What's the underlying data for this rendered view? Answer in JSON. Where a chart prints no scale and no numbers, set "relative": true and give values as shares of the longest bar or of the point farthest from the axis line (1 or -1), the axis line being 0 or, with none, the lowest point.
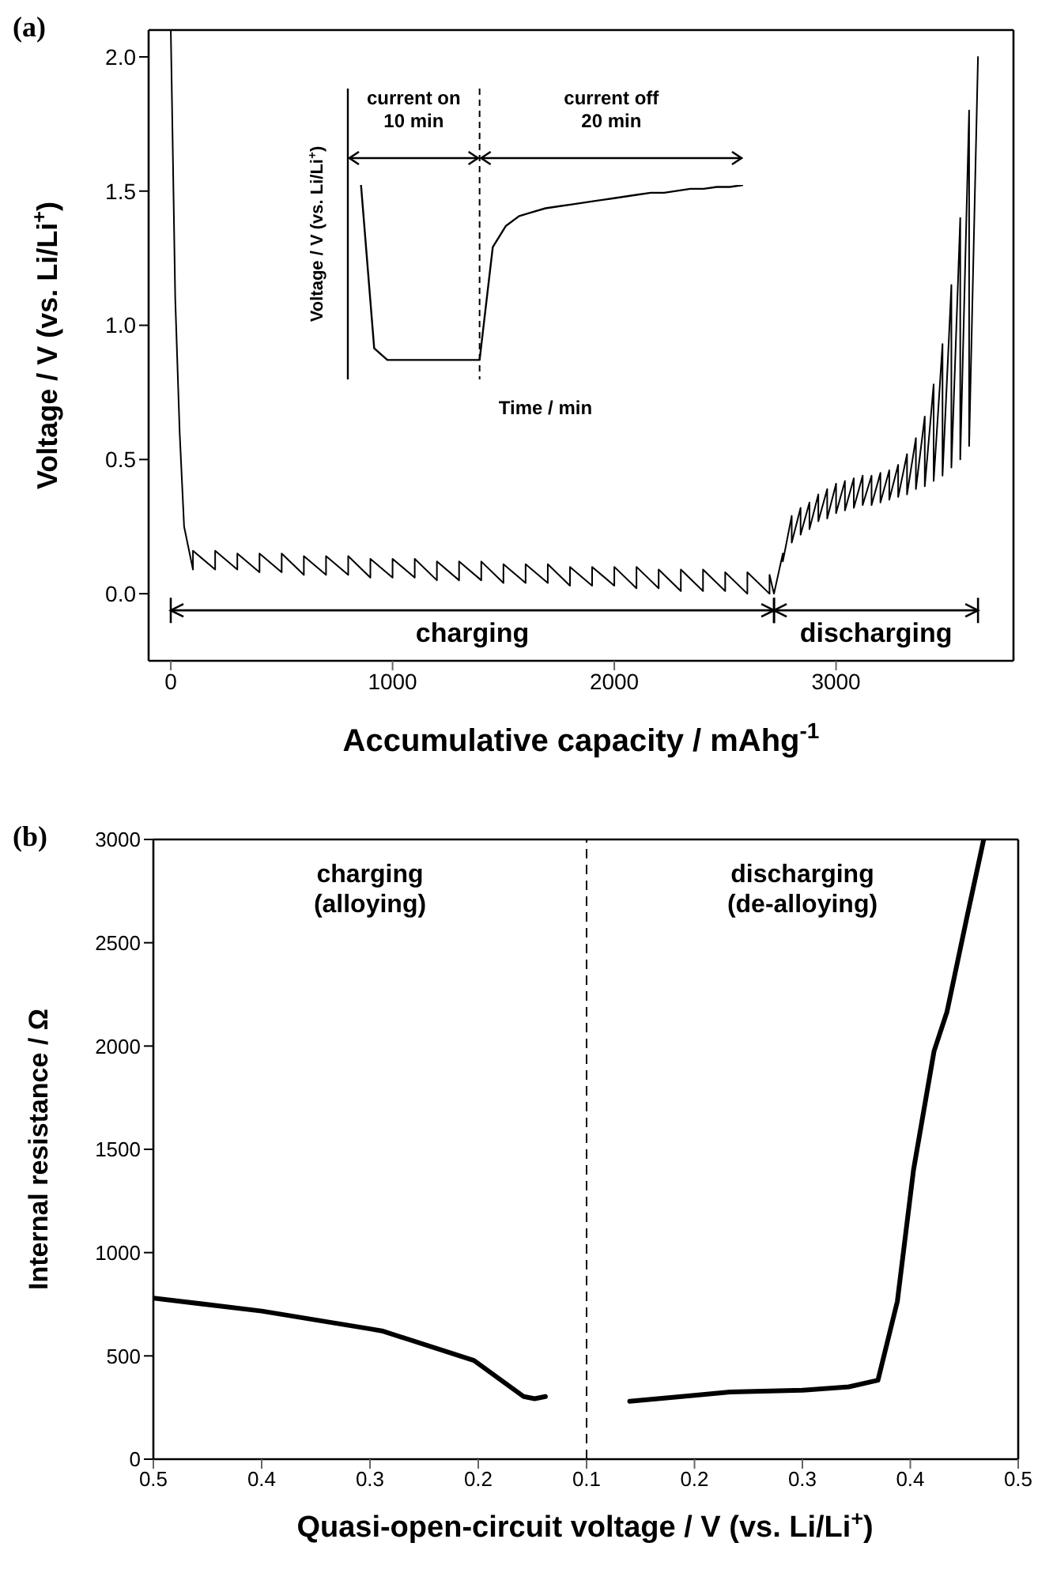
{
  "chart_data": [
    {
      "type": "line",
      "title": "(a)",
      "xlabel": "Accumulative capacity / mAhg$^{-1}$",
      "ylabel": "Voltage / V (vs. Li/Li$^{+}$)",
      "x": [
        0,
        20,
        40,
        60,
        100,
        100,
        200,
        200,
        300,
        300,
        400,
        400,
        500,
        500,
        600,
        600,
        700,
        700,
        800,
        800,
        900,
        900,
        1000,
        1000,
        1100,
        1100,
        1200,
        1200,
        1300,
        1300,
        1400,
        1400,
        1500,
        1500,
        1600,
        1600,
        1700,
        1700,
        1800,
        1800,
        1900,
        1900,
        2000,
        2000,
        2100,
        2100,
        2200,
        2200,
        2300,
        2300,
        2400,
        2400,
        2500,
        2500,
        2600,
        2600,
        2700,
        2700,
        2720,
        2760,
        2760,
        2800,
        2800,
        2840,
        2840,
        2880,
        2880,
        2920,
        2920,
        2960,
        2960,
        3000,
        3000,
        3040,
        3040,
        3080,
        3080,
        3120,
        3120,
        3160,
        3160,
        3200,
        3200,
        3240,
        3240,
        3280,
        3280,
        3320,
        3320,
        3360,
        3360,
        3400,
        3400,
        3440,
        3440,
        3480,
        3480,
        3520,
        3520,
        3560,
        3560,
        3600,
        3600,
        3640
      ],
      "values": [
        2.1,
        1.1,
        0.6,
        0.25,
        0.09,
        0.16,
        0.09,
        0.16,
        0.09,
        0.15,
        0.08,
        0.15,
        0.08,
        0.15,
        0.07,
        0.14,
        0.07,
        0.14,
        0.07,
        0.14,
        0.06,
        0.13,
        0.06,
        0.13,
        0.06,
        0.13,
        0.05,
        0.12,
        0.05,
        0.12,
        0.05,
        0.12,
        0.04,
        0.11,
        0.04,
        0.11,
        0.04,
        0.11,
        0.03,
        0.1,
        0.03,
        0.1,
        0.03,
        0.1,
        0.02,
        0.1,
        0.02,
        0.09,
        0.01,
        0.09,
        0.01,
        0.09,
        0.01,
        0.08,
        0.0,
        0.08,
        0.0,
        0.07,
        0.0,
        0.15,
        0.12,
        0.29,
        0.19,
        0.32,
        0.22,
        0.34,
        0.24,
        0.37,
        0.27,
        0.39,
        0.28,
        0.41,
        0.3,
        0.42,
        0.31,
        0.43,
        0.32,
        0.44,
        0.33,
        0.44,
        0.33,
        0.45,
        0.34,
        0.46,
        0.35,
        0.48,
        0.36,
        0.52,
        0.37,
        0.58,
        0.39,
        0.66,
        0.4,
        0.78,
        0.42,
        0.93,
        0.44,
        1.15,
        0.47,
        1.4,
        0.5,
        1.8,
        0.55,
        2.0
      ],
      "color": "#000000",
      "marker": "none",
      "xlim": [
        -100,
        3800
      ],
      "xticks": [
        0,
        1000,
        2000,
        3000
      ],
      "ylim": [
        -0.25,
        2.1
      ],
      "yticks": [
        {
          "value": 0,
          "label": "0.0"
        },
        {
          "value": 0.5,
          "label": "0.5"
        },
        {
          "value": 1,
          "label": "1.0"
        },
        {
          "value": 1.5,
          "label": "1.5"
        },
        {
          "value": 2,
          "label": "2.0"
        }
      ],
      "annotations": [
        "charging",
        "discharging"
      ]
    },
    {
      "type": "line",
      "relative": true,
      "xlabel": "Time / min",
      "ylabel": "Voltage / V (vs. Li/Li$^{+}$)",
      "annotations": [
        "current on\n10 min",
        "current off\n20 min"
      ],
      "categories": [
        null,
        null,
        null,
        null,
        null,
        null,
        null,
        null,
        null,
        null,
        null,
        null,
        null,
        null,
        null,
        null,
        null,
        null,
        null,
        null,
        null,
        null,
        null,
        null,
        null,
        null,
        null,
        null,
        null,
        null,
        null
      ],
      "values": [
        null,
        1.0,
        0.16,
        0.1,
        0.1,
        0.1,
        0.1,
        0.1,
        0.1,
        0.1,
        0.1,
        0.68,
        0.79,
        0.84,
        0.86,
        0.88,
        0.89,
        0.9,
        0.91,
        0.92,
        0.93,
        0.94,
        0.95,
        0.96,
        0.96,
        0.97,
        0.98,
        0.98,
        0.99,
        0.99,
        1.0
      ],
      "color": "#000000",
      "marker": "none",
      "tick_labels": false
    },
    {
      "type": "line",
      "title": "(b)",
      "xlabel": "Quasi-open-circuit voltage / V (vs. Li/Li$^{+}$)",
      "ylabel": "Internal resistance / Ω",
      "annotations": [
        "charging\n(alloying)"
      ],
      "x": [
        0.5,
        0.4,
        0.3,
        0.289,
        0.204,
        0.158,
        0.148,
        0.138
      ],
      "values": [
        780,
        717,
        631,
        621,
        478,
        303,
        293,
        303
      ],
      "color": "#000000",
      "marker": "none",
      "xlim": [
        0.5,
        0.1
      ],
      "xticks": [
        0.5,
        0.4,
        0.3,
        0.2,
        0.1
      ],
      "ylim": [
        0,
        3000
      ],
      "yticks": [
        0,
        500,
        1000,
        1500,
        2000,
        2500,
        3000
      ],
      "ref_lines": [
        {
          "axis": "x",
          "value": 0.1,
          "line_style": "dashed",
          "color": "#000000"
        }
      ]
    },
    {
      "type": "line",
      "annotations": [
        "discharging\n(de-alloying)"
      ],
      "x": [
        0.14,
        0.2,
        0.233,
        0.3,
        0.343,
        0.37,
        0.388,
        0.403,
        0.422,
        0.434,
        0.452,
        0.468
      ],
      "values": [
        280,
        309,
        325,
        334,
        350,
        382,
        764,
        1401,
        1975,
        2166,
        2612,
        3000
      ],
      "color": "#000000",
      "marker": "none",
      "xlim": [
        0.1,
        0.5
      ],
      "xticks": [
        0.2,
        0.3,
        0.4,
        0.5
      ],
      "ylim": [
        0,
        3000
      ],
      "yticks": [
        0,
        500,
        1000,
        1500,
        2000,
        2500,
        3000
      ],
      "tick_labels": "x"
    }
  ]
}
